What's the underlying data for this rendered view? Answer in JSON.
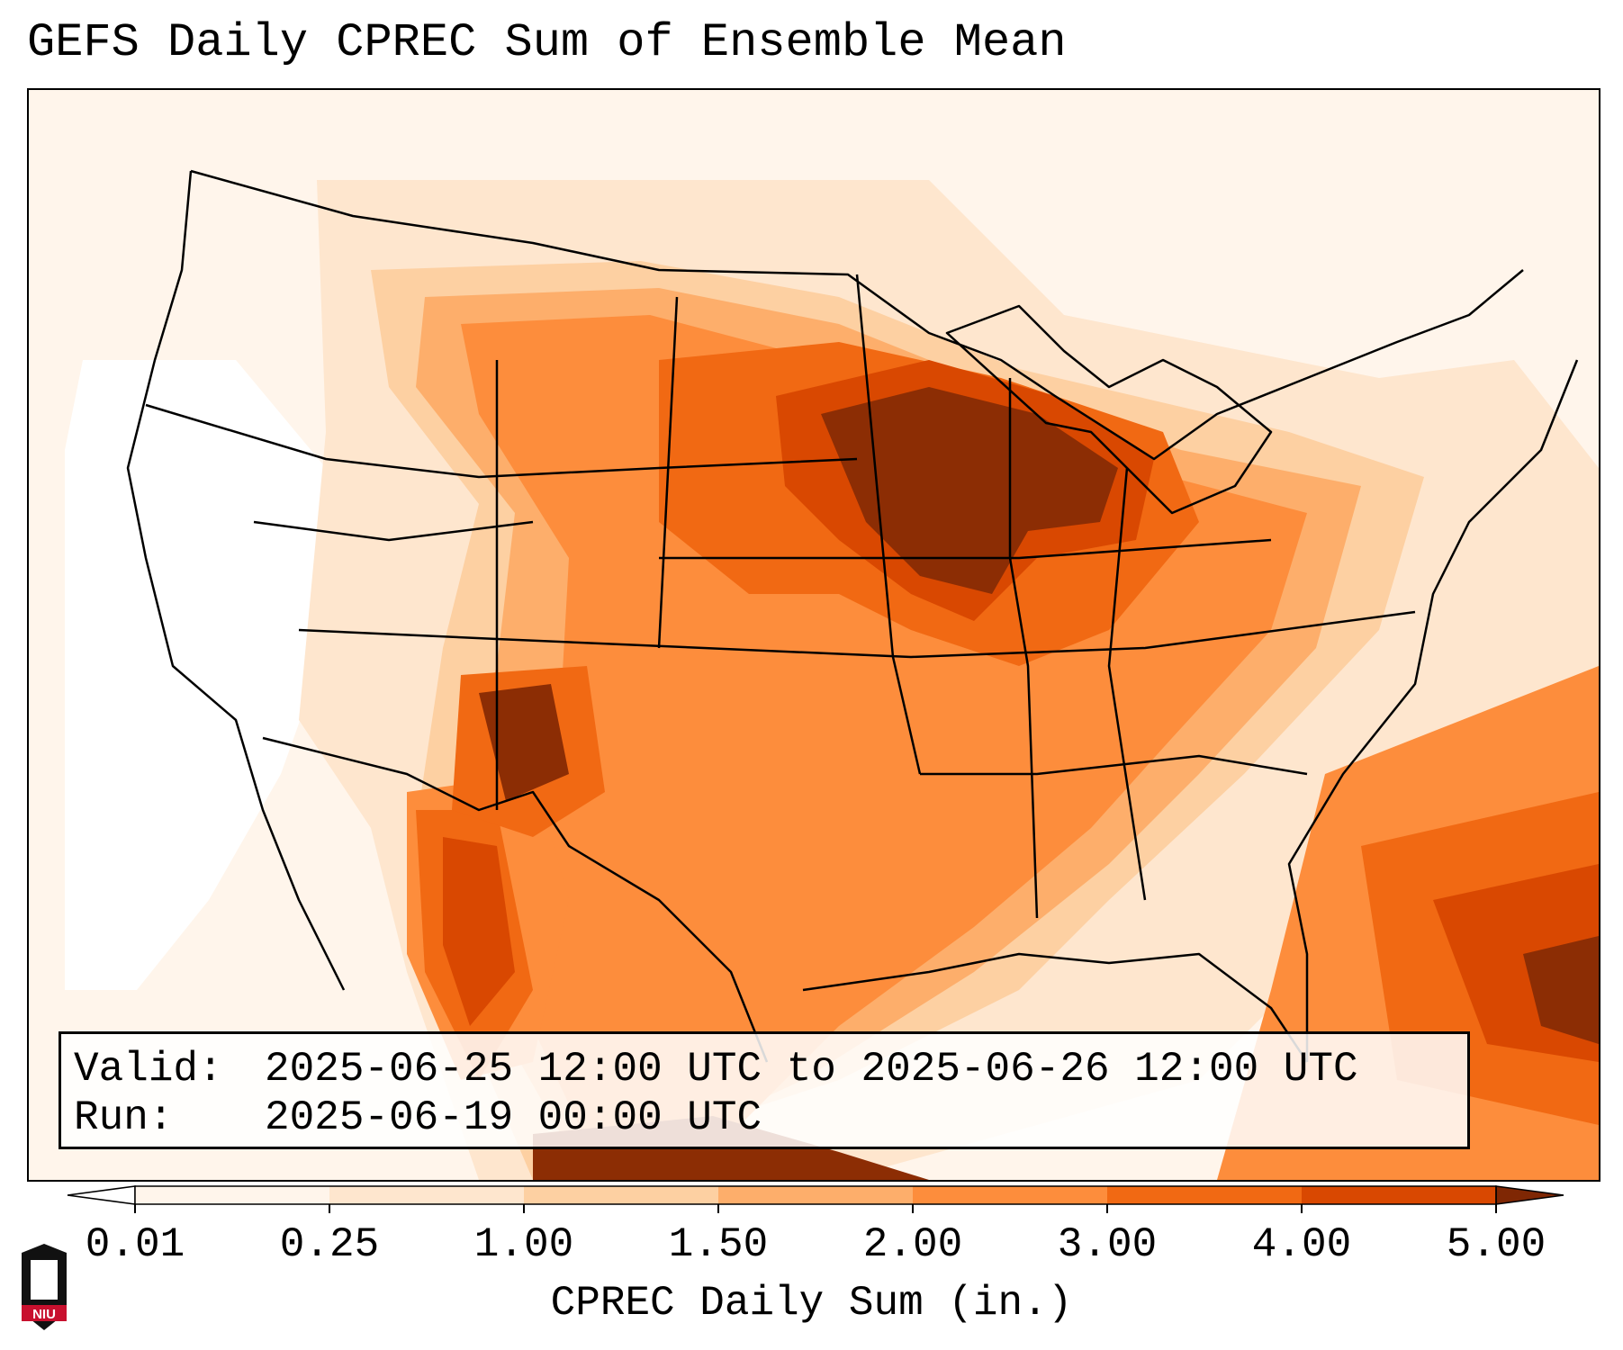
{
  "title": "GEFS Daily CPREC Sum of Ensemble Mean",
  "info": {
    "valid_label": "Valid:",
    "valid_value": "2025-06-25 12:00 UTC to 2025-06-26 12:00 UTC",
    "run_label": "Run:",
    "run_value": "2025-06-19 00:00 UTC"
  },
  "colorbar": {
    "label": "CPREC Daily Sum (in.)",
    "ticks": [
      "0.01",
      "0.25",
      "1.00",
      "1.50",
      "2.00",
      "3.00",
      "4.00",
      "5.00"
    ],
    "colors": [
      "#fff5eb",
      "#fee6ce",
      "#fdd0a2",
      "#fdae6b",
      "#fd8d3c",
      "#f16913",
      "#d94801",
      "#8c2d04"
    ],
    "under_color": "#ffffff",
    "over_color": "#7f2704"
  },
  "logo": {
    "label": "NIU",
    "colors": {
      "shield": "#111111",
      "band": "#c8102e"
    }
  }
}
